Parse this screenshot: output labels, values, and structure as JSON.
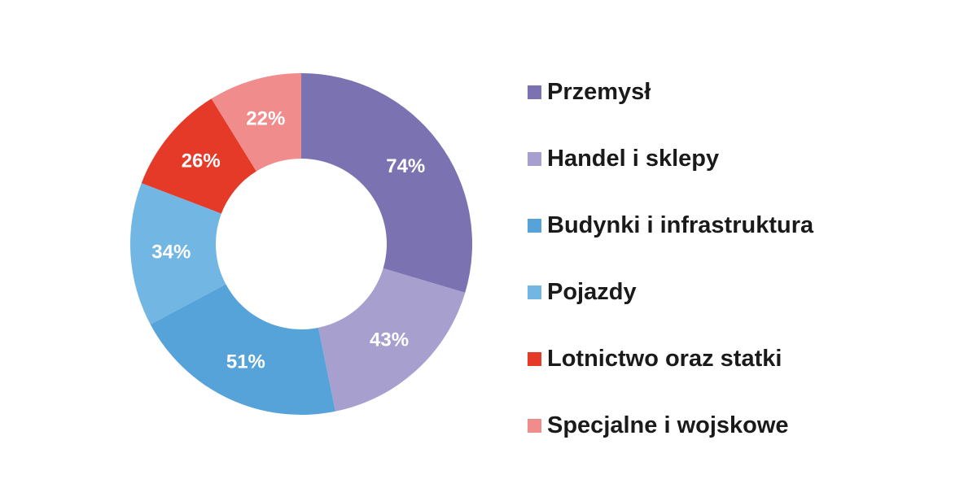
{
  "chart_data": {
    "type": "pie",
    "donut": true,
    "title": "",
    "legend_position": "right",
    "categories": [
      "Przemysł",
      "Handel i sklepy",
      "Budynki i infrastruktura",
      "Pojazdy",
      "Lotnictwo oraz statki",
      "Specjalne i wojskowe"
    ],
    "values": [
      74,
      43,
      51,
      34,
      26,
      22
    ],
    "labels": [
      "74%",
      "43%",
      "51%",
      "34%",
      "26%",
      "22%"
    ],
    "colors": [
      "#7b72b1",
      "#a7a0cf",
      "#56a3da",
      "#72b6e3",
      "#e53a28",
      "#f08c8c"
    ]
  }
}
